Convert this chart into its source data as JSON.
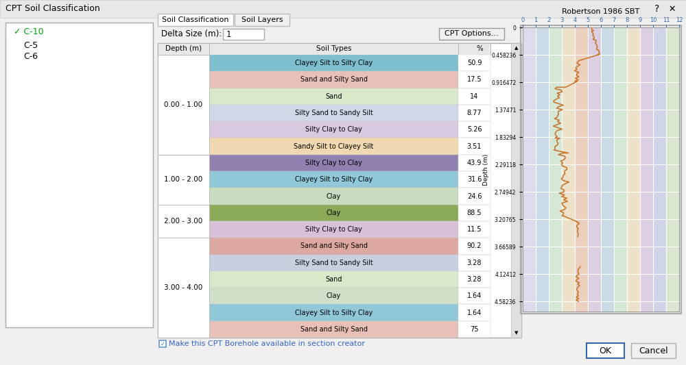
{
  "title": "CPT Soil Classification",
  "bg_color": "#f0f0f0",
  "list_items": [
    "C-10",
    "C-5",
    "C-6"
  ],
  "tabs": [
    "Soil Classification",
    "Soil Layers"
  ],
  "delta_label": "Delta Size (m):",
  "delta_value": "1",
  "button_cpt": "CPT Options...",
  "checkbox_label": "Make this CPT Borehole available in section creator",
  "table_headers": [
    "Depth (m)",
    "Soil Types",
    "%"
  ],
  "table_rows": [
    {
      "depth": "0.00 - 1.00",
      "soil": "Clayey Silt to Silty Clay",
      "pct": "50.9",
      "color": "#7dbfcf"
    },
    {
      "depth": "",
      "soil": "Sand and Silty Sand",
      "pct": "17.5",
      "color": "#e8c0b8"
    },
    {
      "depth": "",
      "soil": "Sand",
      "pct": "14",
      "color": "#d8e8c8"
    },
    {
      "depth": "",
      "soil": "Silty Sand to Sandy Silt",
      "pct": "8.77",
      "color": "#d0d8e8"
    },
    {
      "depth": "",
      "soil": "Silty Clay to Clay",
      "pct": "5.26",
      "color": "#d8c8e0"
    },
    {
      "depth": "",
      "soil": "Sandy Silt to Clayey Silt",
      "pct": "3.51",
      "color": "#f0d8b0"
    },
    {
      "depth": "1.00 - 2.00",
      "soil": "Silty Clay to Clay",
      "pct": "43.9",
      "color": "#9080b0"
    },
    {
      "depth": "",
      "soil": "Clayey Silt to Silty Clay",
      "pct": "31.6",
      "color": "#90c8d8"
    },
    {
      "depth": "",
      "soil": "Clay",
      "pct": "24.6",
      "color": "#c8dcc0"
    },
    {
      "depth": "2.00 - 3.00",
      "soil": "Clay",
      "pct": "88.5",
      "color": "#8aaa58"
    },
    {
      "depth": "",
      "soil": "Silty Clay to Clay",
      "pct": "11.5",
      "color": "#d8c0d8"
    },
    {
      "depth": "3.00 - 4.00",
      "soil": "Sand and Silty Sand",
      "pct": "90.2",
      "color": "#dca8a0"
    },
    {
      "depth": "",
      "soil": "Silty Sand to Sandy Silt",
      "pct": "3.28",
      "color": "#c8d0e0"
    },
    {
      "depth": "",
      "soil": "Sand",
      "pct": "3.28",
      "color": "#d8e8c8"
    },
    {
      "depth": "",
      "soil": "Clay",
      "pct": "1.64",
      "color": "#d0e0c8"
    },
    {
      "depth": "",
      "soil": "Clayey Silt to Silty Clay",
      "pct": "1.64",
      "color": "#90c8d8"
    },
    {
      "depth": "",
      "soil": "Sand and Silty Sand",
      "pct": "75",
      "color": "#e8c0b8"
    }
  ],
  "sbt_title": "Robertson 1986 SBT",
  "sbt_xlabels": [
    "0",
    "1",
    "2",
    "3",
    "4",
    "5",
    "6",
    "7",
    "8",
    "9",
    "10",
    "11",
    "12"
  ],
  "sbt_yticks": [
    0,
    0.458236,
    0.916472,
    1.37471,
    1.83294,
    2.29118,
    2.74942,
    3.20765,
    3.66589,
    4.12412,
    4.58236
  ],
  "sbt_ylabel": "Depth (m)",
  "sbt_depth_max": 4.75,
  "zone_colors": [
    "#d0d0e8",
    "#b8d0e0",
    "#c8e0c8",
    "#e8d8b8",
    "#e8c0a8",
    "#d0c0d8",
    "#b8d0e0",
    "#c8e0c8",
    "#e8d8b8",
    "#d0c0d8",
    "#c0c8e0",
    "#d0e0c0"
  ],
  "sbt_line_color": "#c87830",
  "ok_btn": "OK",
  "cancel_btn": "Cancel"
}
